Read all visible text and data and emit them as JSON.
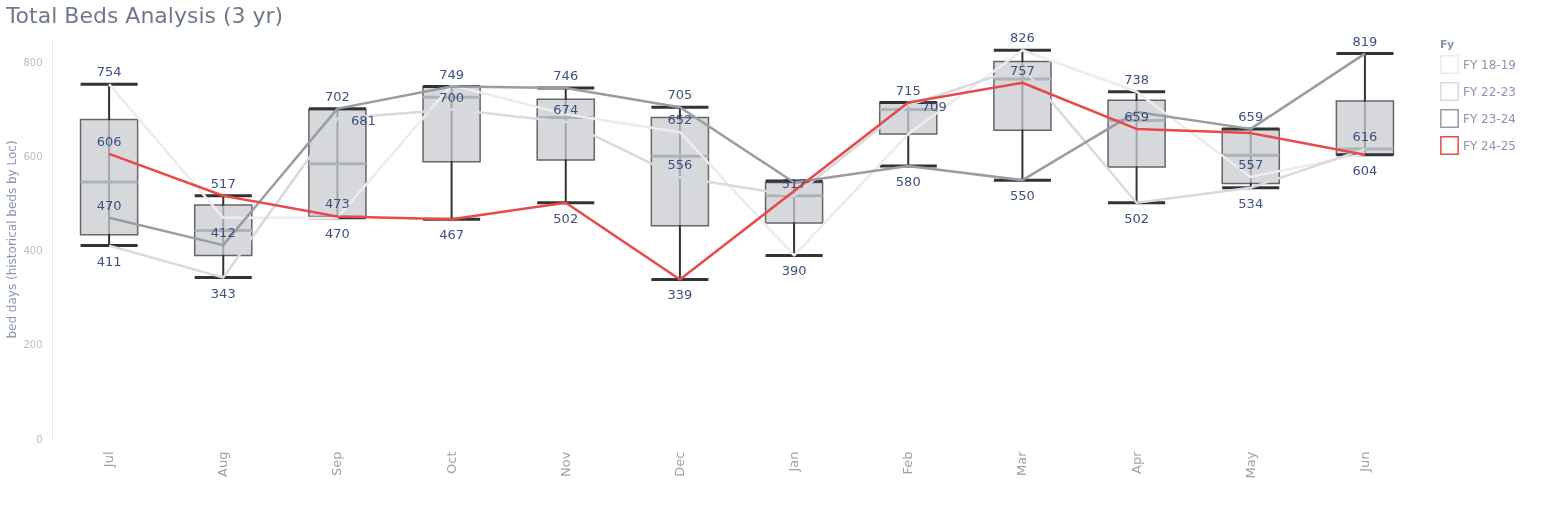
{
  "chart_data": {
    "type": "box",
    "title": "Total Beds Analysis (3 yr)",
    "ylabel": "bed days (historical beds by Loc)",
    "legend_title": "Fy",
    "legend": "top right",
    "grid": false,
    "marker": "none",
    "categories": [
      "Jul",
      "Aug",
      "Sep",
      "Oct",
      "Nov",
      "Dec",
      "Jan",
      "Feb",
      "Mar",
      "Apr",
      "May",
      "Jun"
    ],
    "ylim": [
      0,
      850
    ],
    "yticks": [
      0,
      200,
      400,
      600,
      800
    ],
    "boxes": [
      {
        "low": 411,
        "q1": 434,
        "median": 546,
        "q3": 679,
        "high": 754
      },
      {
        "low": 343,
        "q1": 390,
        "median": 443,
        "q3": 497,
        "high": 517
      },
      {
        "low": 470,
        "q1": 473,
        "median": 585,
        "q3": 700,
        "high": 702
      },
      {
        "low": 467,
        "q1": 589,
        "median": 726,
        "q3": 749,
        "high": 749
      },
      {
        "low": 502,
        "q1": 593,
        "median": 683,
        "q3": 722,
        "high": 746
      },
      {
        "low": 339,
        "q1": 453,
        "median": 601,
        "q3": 683,
        "high": 705
      },
      {
        "low": 390,
        "q1": 459,
        "median": 517,
        "q3": 545,
        "high": 548
      },
      {
        "low": 580,
        "q1": 648,
        "median": 700,
        "q3": 715,
        "high": 715
      },
      {
        "low": 550,
        "q1": 656,
        "median": 765,
        "q3": 802,
        "high": 826
      },
      {
        "low": 502,
        "q1": 578,
        "median": 677,
        "q3": 720,
        "high": 738
      },
      {
        "low": 534,
        "q1": 543,
        "median": 603,
        "q3": 659,
        "high": 659
      },
      {
        "low": 604,
        "q1": 604,
        "median": 616,
        "q3": 718,
        "high": 819
      }
    ],
    "series": [
      {
        "name": "FY 18-19",
        "type": "line",
        "color": "#ececee",
        "values": [
          754,
          470,
          470,
          752,
          690,
          652,
          390,
          648,
          826,
          738,
          557,
          606
        ]
      },
      {
        "name": "FY 22-23",
        "type": "line",
        "color": "#d6dae1",
        "values": [
          411,
          343,
          681,
          700,
          674,
          556,
          517,
          709,
          790,
          502,
          534,
          616
        ]
      },
      {
        "name": "FY 23-24",
        "type": "line",
        "color": "#979da5",
        "values": [
          470,
          412,
          702,
          749,
          746,
          705,
          545,
          580,
          550,
          695,
          659,
          819
        ]
      },
      {
        "name": "FY 24-25",
        "type": "line",
        "color": "#e84a4a",
        "values": [
          606,
          517,
          473,
          467,
          502,
          339,
          527,
          715,
          757,
          659,
          650,
          604
        ]
      }
    ],
    "annotations": [
      {
        "text": "754",
        "x": "Jul",
        "y": 754
      },
      {
        "text": "606",
        "x": "Jul",
        "y": 606
      },
      {
        "text": "470",
        "x": "Jul",
        "y": 470
      },
      {
        "text": "411",
        "x": "Jul",
        "y": 411
      },
      {
        "text": "517",
        "x": "Aug",
        "y": 517
      },
      {
        "text": "412",
        "x": "Aug",
        "y": 412
      },
      {
        "text": "343",
        "x": "Aug",
        "y": 343
      },
      {
        "text": "702",
        "x": "Sep",
        "y": 702
      },
      {
        "text": "681",
        "x": "Sep",
        "y": 681
      },
      {
        "text": "470",
        "x": "Sep",
        "y": 470
      },
      {
        "text": "473",
        "x": "Sep",
        "y": 473
      },
      {
        "text": "749",
        "x": "Oct",
        "y": 749
      },
      {
        "text": "700",
        "x": "Oct",
        "y": 700
      },
      {
        "text": "467",
        "x": "Oct",
        "y": 467
      },
      {
        "text": "746",
        "x": "Nov",
        "y": 746
      },
      {
        "text": "674",
        "x": "Nov",
        "y": 674
      },
      {
        "text": "502",
        "x": "Nov",
        "y": 502
      },
      {
        "text": "705",
        "x": "Dec",
        "y": 705
      },
      {
        "text": "652",
        "x": "Dec",
        "y": 652
      },
      {
        "text": "556",
        "x": "Dec",
        "y": 556
      },
      {
        "text": "339",
        "x": "Dec",
        "y": 339
      },
      {
        "text": "517",
        "x": "Jan",
        "y": 517
      },
      {
        "text": "390",
        "x": "Jan",
        "y": 390
      },
      {
        "text": "715",
        "x": "Feb",
        "y": 715
      },
      {
        "text": "709",
        "x": "Feb",
        "y": 709
      },
      {
        "text": "580",
        "x": "Feb",
        "y": 580
      },
      {
        "text": "826",
        "x": "Mar",
        "y": 826
      },
      {
        "text": "757",
        "x": "Mar",
        "y": 757
      },
      {
        "text": "550",
        "x": "Mar",
        "y": 550
      },
      {
        "text": "738",
        "x": "Apr",
        "y": 738
      },
      {
        "text": "659",
        "x": "Apr",
        "y": 659
      },
      {
        "text": "502",
        "x": "Apr",
        "y": 502
      },
      {
        "text": "659",
        "x": "May",
        "y": 659
      },
      {
        "text": "557",
        "x": "May",
        "y": 557
      },
      {
        "text": "534",
        "x": "May",
        "y": 534
      },
      {
        "text": "819",
        "x": "Jun",
        "y": 819
      },
      {
        "text": "616",
        "x": "Jun",
        "y": 616
      },
      {
        "text": "604",
        "x": "Jun",
        "y": 604
      }
    ]
  }
}
